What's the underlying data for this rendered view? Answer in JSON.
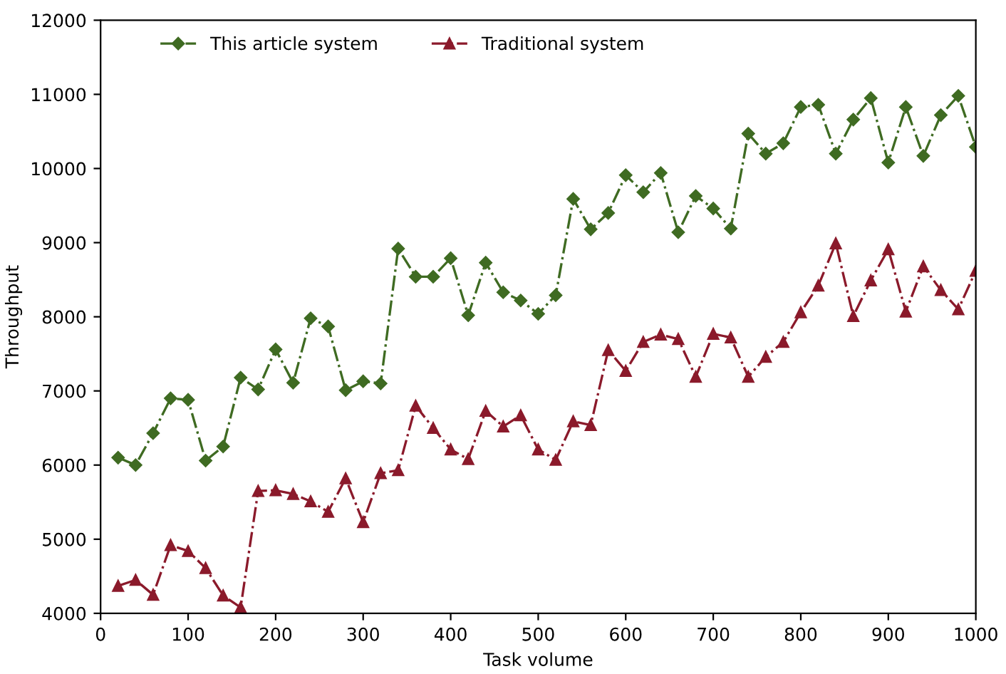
{
  "chart_data": {
    "type": "line",
    "xlabel": "Task volume",
    "ylabel": "Throughput",
    "x": [
      20,
      40,
      60,
      80,
      100,
      120,
      140,
      160,
      180,
      200,
      220,
      240,
      260,
      280,
      300,
      320,
      340,
      360,
      380,
      400,
      420,
      440,
      460,
      480,
      500,
      520,
      540,
      560,
      580,
      600,
      620,
      640,
      660,
      680,
      700,
      720,
      740,
      760,
      780,
      800,
      820,
      840,
      860,
      880,
      900,
      920,
      940,
      960,
      980,
      1000
    ],
    "series": [
      {
        "name": "This article system",
        "color": "#3f6b22",
        "marker": "diamond",
        "values": [
          6100,
          6000,
          6430,
          6900,
          6880,
          6060,
          6250,
          7180,
          7020,
          7560,
          7110,
          7980,
          7870,
          7010,
          7130,
          7100,
          8920,
          8540,
          8540,
          8790,
          8020,
          8730,
          8330,
          8220,
          8040,
          8290,
          9590,
          9180,
          9400,
          9910,
          9680,
          9940,
          9140,
          9630,
          9460,
          9190,
          10470,
          10200,
          10340,
          10830,
          10860,
          10200,
          10660,
          10950,
          10080,
          10830,
          10170,
          10720,
          10980,
          10290
        ]
      },
      {
        "name": "Traditional system",
        "color": "#8b1a2b",
        "marker": "triangle",
        "values": [
          4370,
          4450,
          4250,
          4920,
          4840,
          4610,
          4240,
          4080,
          5650,
          5660,
          5610,
          5510,
          5370,
          5820,
          5230,
          5890,
          5930,
          6800,
          6500,
          6210,
          6080,
          6730,
          6520,
          6670,
          6210,
          6070,
          6590,
          6540,
          7550,
          7270,
          7660,
          7760,
          7700,
          7190,
          7770,
          7720,
          7190,
          7460,
          7660,
          8060,
          8420,
          8990,
          8010,
          8490,
          8910,
          8070,
          8680,
          8360,
          8100,
          8620
        ]
      }
    ],
    "xlim": [
      0,
      1000
    ],
    "xticks": [
      0,
      100,
      200,
      300,
      400,
      500,
      600,
      700,
      800,
      900,
      1000
    ],
    "ylim": [
      4000,
      12000
    ],
    "yticks": [
      4000,
      5000,
      6000,
      7000,
      8000,
      9000,
      10000,
      11000,
      12000
    ],
    "line_style": "dashed",
    "legend": "top left",
    "grid": false
  }
}
